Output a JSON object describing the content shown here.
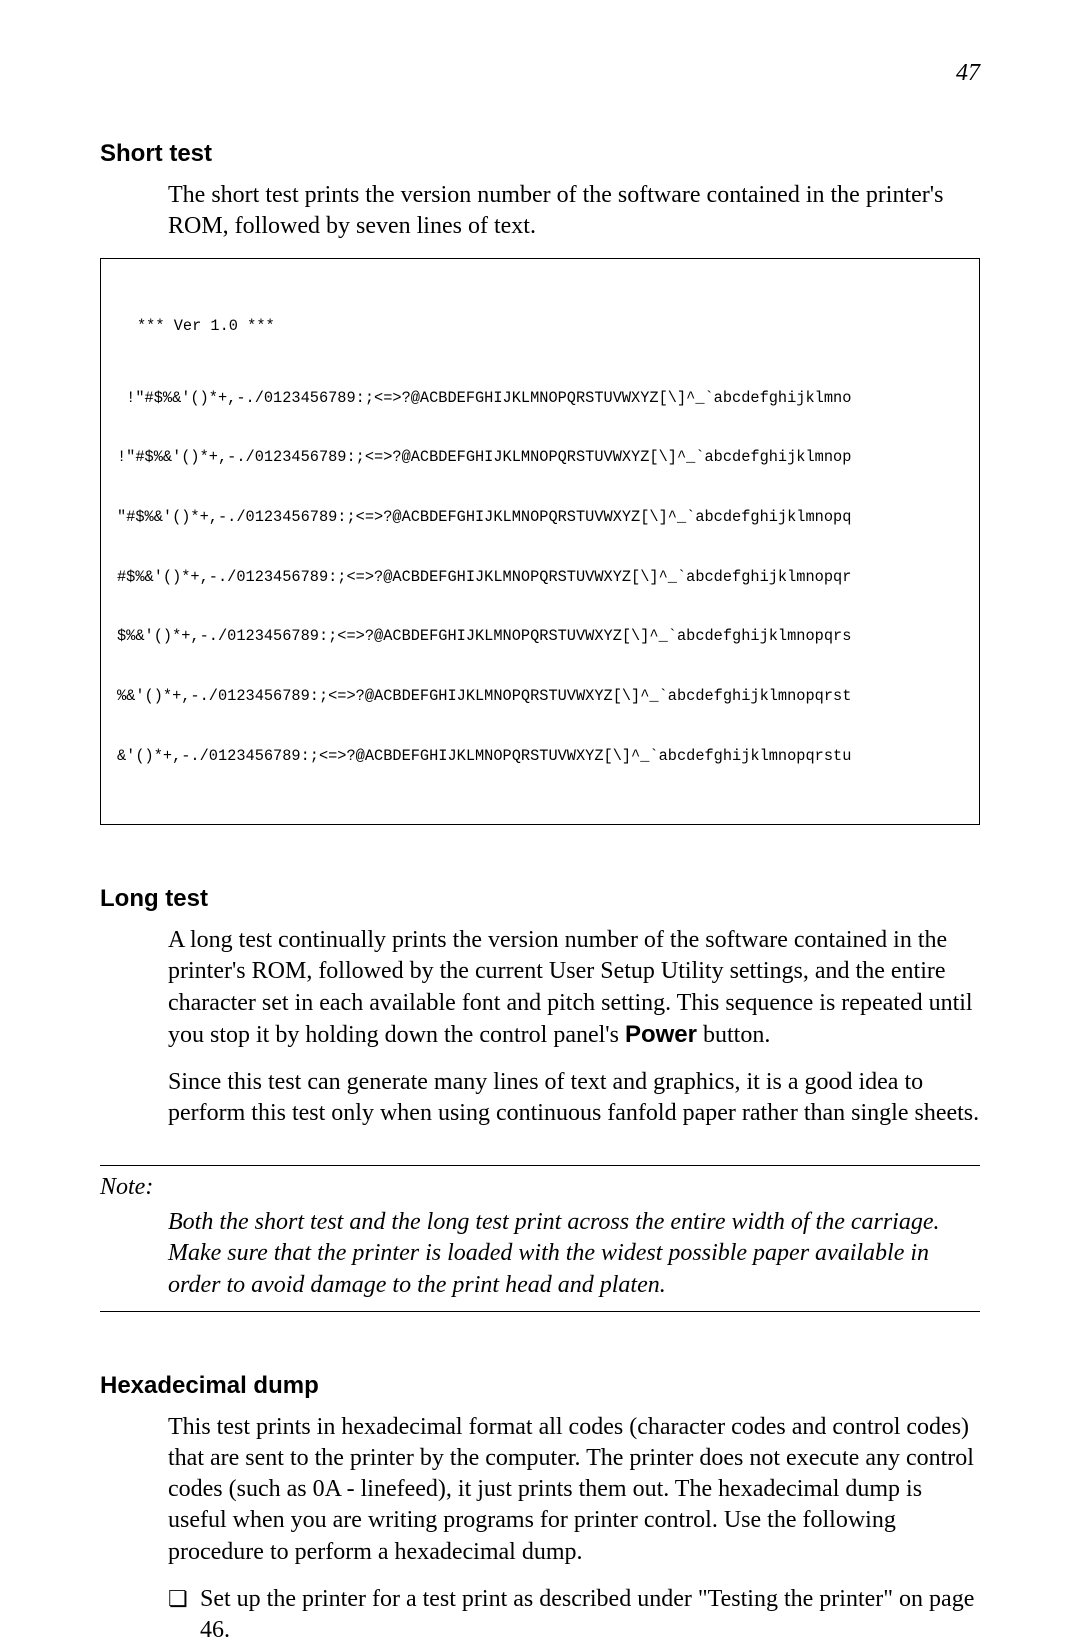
{
  "page_number": "47",
  "short_test": {
    "heading": "Short test",
    "para": "The short test prints the version number of the software contained in the printer's ROM, followed by seven lines of text.",
    "code_ver": "*** Ver 1.0 ***",
    "code_lines": [
      " !\"#$%&'()*+,-./0123456789:;<=>?@ACBDEFGHIJKLMNOPQRSTUVWXYZ[\\]^_`abcdefghijklmno",
      "!\"#$%&'()*+,-./0123456789:;<=>?@ACBDEFGHIJKLMNOPQRSTUVWXYZ[\\]^_`abcdefghijklmnop",
      "\"#$%&'()*+,-./0123456789:;<=>?@ACBDEFGHIJKLMNOPQRSTUVWXYZ[\\]^_`abcdefghijklmnopq",
      "#$%&'()*+,-./0123456789:;<=>?@ACBDEFGHIJKLMNOPQRSTUVWXYZ[\\]^_`abcdefghijklmnopqr",
      "$%&'()*+,-./0123456789:;<=>?@ACBDEFGHIJKLMNOPQRSTUVWXYZ[\\]^_`abcdefghijklmnopqrs",
      "%&'()*+,-./0123456789:;<=>?@ACBDEFGHIJKLMNOPQRSTUVWXYZ[\\]^_`abcdefghijklmnopqrst",
      "&'()*+,-./0123456789:;<=>?@ACBDEFGHIJKLMNOPQRSTUVWXYZ[\\]^_`abcdefghijklmnopqrstu"
    ]
  },
  "long_test": {
    "heading": "Long test",
    "para1_prefix": "A long test continually prints the version number of the software contained in the printer's ROM, followed by the current User Setup Utility settings, and the entire character set in each available font and pitch setting. This sequence is repeated until you stop it by holding down the control panel's ",
    "para1_bold": "Power",
    "para1_suffix": " button.",
    "para2": "Since this test can generate many lines of text and graphics, it is a good idea to perform this test only when using continuous fanfold paper rather than single sheets."
  },
  "note": {
    "label": "Note:",
    "body": "Both the short test and the long test print across the entire width of the carriage. Make sure that the printer is loaded with the widest possible paper available in order to avoid damage to the print head and platen."
  },
  "hex_dump": {
    "heading": "Hexadecimal dump",
    "para": "This test prints in hexadecimal format all codes (character codes and control codes) that are sent to the printer by the computer. The printer does not execute any control codes (such as 0A - linefeed), it just prints them out. The hexadecimal dump is useful when you are writing programs for printer control. Use the following procedure to perform a hexadecimal dump.",
    "bullet": "Set up the printer for a test print as described under \"Testing the printer\" on page 46."
  }
}
